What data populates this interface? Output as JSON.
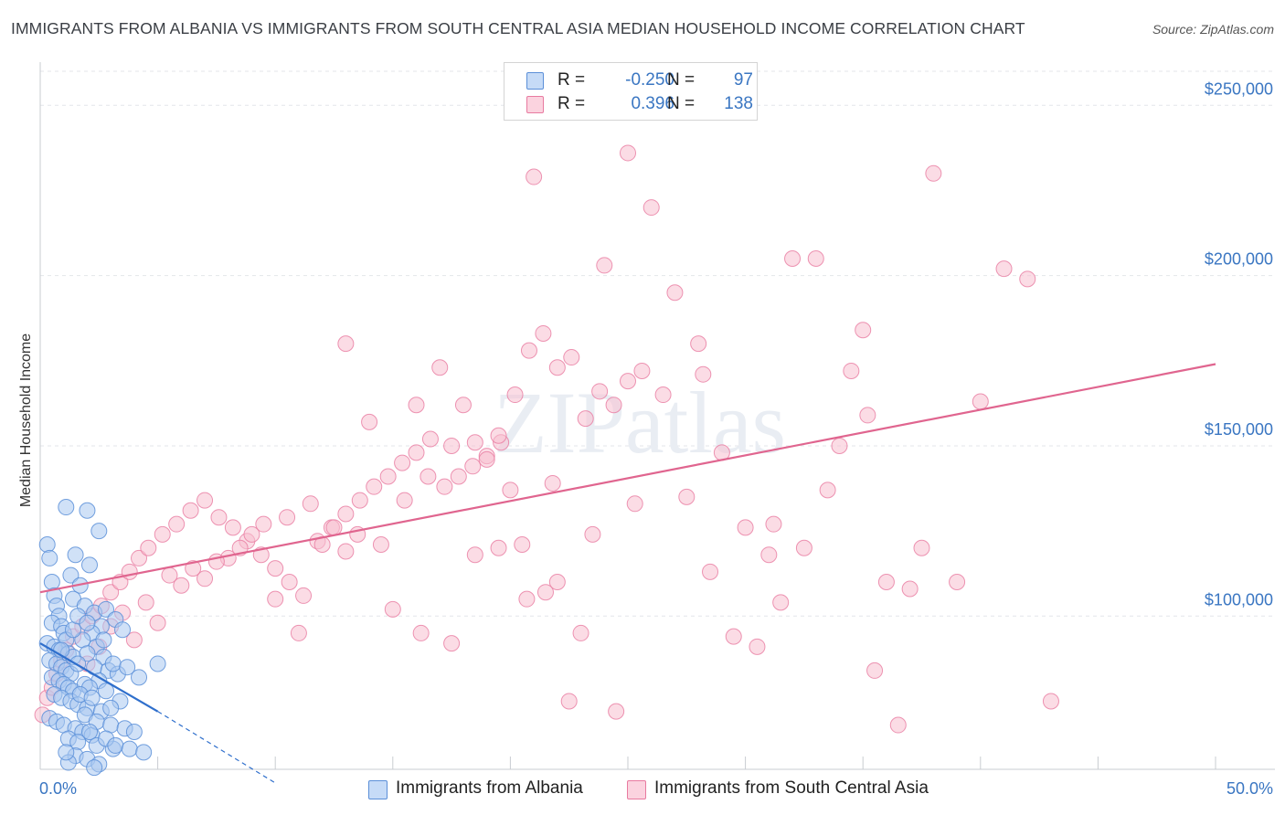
{
  "title": "IMMIGRANTS FROM ALBANIA VS IMMIGRANTS FROM SOUTH CENTRAL ASIA MEDIAN HOUSEHOLD INCOME CORRELATION CHART",
  "source": "Source: ZipAtlas.com",
  "watermark": "ZIPatlas",
  "legend": {
    "rows": [
      {
        "r_label": "R =",
        "r_value": "-0.250",
        "n_label": "N =",
        "n_value": "97"
      },
      {
        "r_label": "R =",
        "r_value": "0.396",
        "n_label": "N =",
        "n_value": "138"
      }
    ]
  },
  "colors": {
    "albania_fill": "#a9c8f0",
    "albania_stroke": "#5b8fd8",
    "albania_line": "#2f6fcc",
    "sca_fill": "#f7bfd0",
    "sca_stroke": "#e87aa0",
    "sca_line": "#e0658f",
    "tick_text": "#3a76c2"
  },
  "chart_data": {
    "type": "scatter",
    "title": "IMMIGRANTS FROM ALBANIA VS IMMIGRANTS FROM SOUTH CENTRAL ASIA MEDIAN HOUSEHOLD INCOME CORRELATION CHART",
    "xlabel": "",
    "ylabel": "Median Household Income",
    "xlim": [
      0,
      50
    ],
    "ylim": [
      55000,
      260000
    ],
    "x_tick_labels": [
      "0.0%",
      "50.0%"
    ],
    "y_ticks": [
      100000,
      150000,
      200000,
      250000
    ],
    "y_tick_labels": [
      "$100,000",
      "$150,000",
      "$200,000",
      "$250,000"
    ],
    "legend_position": "bottom",
    "series": [
      {
        "name": "Immigrants from Albania",
        "R": -0.25,
        "N": 97,
        "trend": {
          "x": [
            0,
            5.0
          ],
          "y": [
            92000,
            72000
          ],
          "dashed_to": [
            10.0,
            51000
          ]
        },
        "points": [
          [
            0.3,
            121000
          ],
          [
            0.4,
            117000
          ],
          [
            0.5,
            110000
          ],
          [
            0.6,
            106000
          ],
          [
            0.7,
            103000
          ],
          [
            0.8,
            100000
          ],
          [
            0.5,
            98000
          ],
          [
            0.9,
            97000
          ],
          [
            1.0,
            95000
          ],
          [
            1.1,
            93000
          ],
          [
            0.3,
            92000
          ],
          [
            0.6,
            91000
          ],
          [
            0.8,
            90000
          ],
          [
            1.2,
            89000
          ],
          [
            1.4,
            88000
          ],
          [
            0.4,
            87000
          ],
          [
            0.7,
            86000
          ],
          [
            0.9,
            85000
          ],
          [
            1.1,
            84000
          ],
          [
            1.3,
            83000
          ],
          [
            0.5,
            82000
          ],
          [
            0.8,
            81000
          ],
          [
            1.0,
            80000
          ],
          [
            1.2,
            79000
          ],
          [
            1.4,
            78000
          ],
          [
            0.6,
            77000
          ],
          [
            0.9,
            76000
          ],
          [
            1.3,
            75000
          ],
          [
            1.6,
            74000
          ],
          [
            2.0,
            73000
          ],
          [
            0.4,
            70000
          ],
          [
            0.7,
            69000
          ],
          [
            1.0,
            68000
          ],
          [
            1.5,
            67000
          ],
          [
            1.8,
            66000
          ],
          [
            2.2,
            65000
          ],
          [
            1.2,
            64000
          ],
          [
            1.6,
            63000
          ],
          [
            2.4,
            62000
          ],
          [
            3.1,
            61000
          ],
          [
            1.1,
            132000
          ],
          [
            2.0,
            131000
          ],
          [
            2.5,
            125000
          ],
          [
            1.5,
            118000
          ],
          [
            2.1,
            115000
          ],
          [
            1.3,
            112000
          ],
          [
            1.7,
            109000
          ],
          [
            1.4,
            105000
          ],
          [
            1.9,
            103000
          ],
          [
            2.3,
            101000
          ],
          [
            2.8,
            102000
          ],
          [
            3.2,
            99000
          ],
          [
            2.6,
            97000
          ],
          [
            3.5,
            96000
          ],
          [
            2.2,
            95000
          ],
          [
            1.8,
            93000
          ],
          [
            2.4,
            91000
          ],
          [
            2.0,
            89000
          ],
          [
            2.7,
            88000
          ],
          [
            1.6,
            86000
          ],
          [
            2.3,
            85000
          ],
          [
            2.9,
            84000
          ],
          [
            3.3,
            83000
          ],
          [
            2.5,
            81000
          ],
          [
            1.9,
            80000
          ],
          [
            2.1,
            79000
          ],
          [
            2.8,
            78000
          ],
          [
            1.7,
            77000
          ],
          [
            2.2,
            76000
          ],
          [
            3.4,
            75000
          ],
          [
            2.6,
            72000
          ],
          [
            1.9,
            71000
          ],
          [
            2.4,
            69000
          ],
          [
            3.0,
            68000
          ],
          [
            3.6,
            67000
          ],
          [
            2.1,
            66000
          ],
          [
            2.8,
            64000
          ],
          [
            3.2,
            62000
          ],
          [
            3.8,
            61000
          ],
          [
            4.4,
            60000
          ],
          [
            1.5,
            59000
          ],
          [
            2.0,
            58000
          ],
          [
            1.2,
            57000
          ],
          [
            2.5,
            56500
          ],
          [
            4.0,
            66000
          ],
          [
            5.0,
            86000
          ],
          [
            3.1,
            86000
          ],
          [
            1.4,
            96000
          ],
          [
            0.9,
            90000
          ],
          [
            2.7,
            93000
          ],
          [
            1.6,
            100000
          ],
          [
            2.0,
            98000
          ],
          [
            3.7,
            85000
          ],
          [
            4.2,
            82000
          ],
          [
            3.0,
            73000
          ],
          [
            1.1,
            60000
          ],
          [
            2.3,
            55500
          ]
        ]
      },
      {
        "name": "Immigrants from South Central Asia",
        "R": 0.396,
        "N": 138,
        "trend": {
          "x": [
            0,
            50
          ],
          "y": [
            107000,
            174000
          ]
        },
        "points": [
          [
            0.1,
            71000
          ],
          [
            0.3,
            76000
          ],
          [
            0.5,
            79000
          ],
          [
            0.7,
            83000
          ],
          [
            0.9,
            87000
          ],
          [
            1.1,
            90000
          ],
          [
            1.4,
            94000
          ],
          [
            1.8,
            97000
          ],
          [
            2.2,
            100000
          ],
          [
            2.6,
            103000
          ],
          [
            3.0,
            107000
          ],
          [
            3.4,
            110000
          ],
          [
            3.8,
            113000
          ],
          [
            4.2,
            117000
          ],
          [
            4.6,
            120000
          ],
          [
            5.2,
            124000
          ],
          [
            5.8,
            127000
          ],
          [
            6.4,
            131000
          ],
          [
            7.0,
            134000
          ],
          [
            7.6,
            129000
          ],
          [
            8.2,
            126000
          ],
          [
            8.8,
            122000
          ],
          [
            9.4,
            118000
          ],
          [
            10.0,
            114000
          ],
          [
            10.6,
            110000
          ],
          [
            11.2,
            106000
          ],
          [
            11.8,
            122000
          ],
          [
            12.4,
            126000
          ],
          [
            13.0,
            130000
          ],
          [
            13.6,
            134000
          ],
          [
            14.2,
            138000
          ],
          [
            14.8,
            141000
          ],
          [
            15.4,
            145000
          ],
          [
            16.0,
            148000
          ],
          [
            16.6,
            152000
          ],
          [
            17.2,
            138000
          ],
          [
            17.8,
            141000
          ],
          [
            18.4,
            144000
          ],
          [
            19.0,
            147000
          ],
          [
            19.6,
            151000
          ],
          [
            20.2,
            165000
          ],
          [
            20.8,
            178000
          ],
          [
            21.4,
            183000
          ],
          [
            22.0,
            173000
          ],
          [
            22.6,
            176000
          ],
          [
            23.2,
            158000
          ],
          [
            23.8,
            166000
          ],
          [
            24.4,
            162000
          ],
          [
            25.0,
            169000
          ],
          [
            25.6,
            172000
          ],
          [
            13.0,
            180000
          ],
          [
            14.0,
            157000
          ],
          [
            16.0,
            162000
          ],
          [
            17.0,
            173000
          ],
          [
            18.0,
            162000
          ],
          [
            19.0,
            146000
          ],
          [
            20.0,
            137000
          ],
          [
            21.0,
            229000
          ],
          [
            22.0,
            110000
          ],
          [
            23.0,
            95000
          ],
          [
            24.0,
            203000
          ],
          [
            25.0,
            236000
          ],
          [
            26.0,
            220000
          ],
          [
            27.0,
            195000
          ],
          [
            28.0,
            180000
          ],
          [
            29.0,
            148000
          ],
          [
            30.0,
            126000
          ],
          [
            31.0,
            118000
          ],
          [
            32.0,
            205000
          ],
          [
            33.0,
            205000
          ],
          [
            34.0,
            150000
          ],
          [
            35.0,
            184000
          ],
          [
            36.0,
            110000
          ],
          [
            37.0,
            108000
          ],
          [
            38.0,
            230000
          ],
          [
            39.0,
            110000
          ],
          [
            40.0,
            163000
          ],
          [
            41.0,
            202000
          ],
          [
            42.0,
            199000
          ],
          [
            43.0,
            75000
          ],
          [
            27.5,
            135000
          ],
          [
            28.5,
            113000
          ],
          [
            29.5,
            94000
          ],
          [
            30.5,
            91000
          ],
          [
            31.5,
            104000
          ],
          [
            32.5,
            120000
          ],
          [
            33.5,
            137000
          ],
          [
            34.5,
            172000
          ],
          [
            35.5,
            84000
          ],
          [
            36.5,
            68000
          ],
          [
            15.0,
            102000
          ],
          [
            16.2,
            95000
          ],
          [
            17.5,
            92000
          ],
          [
            18.5,
            118000
          ],
          [
            19.5,
            120000
          ],
          [
            20.5,
            121000
          ],
          [
            21.5,
            107000
          ],
          [
            22.5,
            75000
          ],
          [
            23.5,
            124000
          ],
          [
            24.5,
            72000
          ],
          [
            4.0,
            93000
          ],
          [
            5.0,
            98000
          ],
          [
            6.0,
            109000
          ],
          [
            7.0,
            111000
          ],
          [
            8.0,
            117000
          ],
          [
            9.0,
            124000
          ],
          [
            10.0,
            105000
          ],
          [
            11.0,
            95000
          ],
          [
            12.0,
            121000
          ],
          [
            13.0,
            119000
          ],
          [
            2.0,
            86000
          ],
          [
            2.5,
            91000
          ],
          [
            3.0,
            97000
          ],
          [
            3.5,
            101000
          ],
          [
            4.5,
            104000
          ],
          [
            5.5,
            112000
          ],
          [
            6.5,
            114000
          ],
          [
            7.5,
            116000
          ],
          [
            8.5,
            120000
          ],
          [
            9.5,
            127000
          ],
          [
            10.5,
            129000
          ],
          [
            11.5,
            133000
          ],
          [
            12.5,
            126000
          ],
          [
            13.5,
            124000
          ],
          [
            14.5,
            121000
          ],
          [
            15.5,
            134000
          ],
          [
            16.5,
            141000
          ],
          [
            17.5,
            150000
          ],
          [
            18.5,
            151000
          ],
          [
            19.5,
            153000
          ],
          [
            26.5,
            165000
          ],
          [
            28.2,
            171000
          ],
          [
            31.2,
            127000
          ],
          [
            35.2,
            159000
          ],
          [
            37.5,
            120000
          ],
          [
            20.7,
            105000
          ],
          [
            25.3,
            133000
          ],
          [
            21.8,
            139000
          ]
        ]
      }
    ]
  }
}
